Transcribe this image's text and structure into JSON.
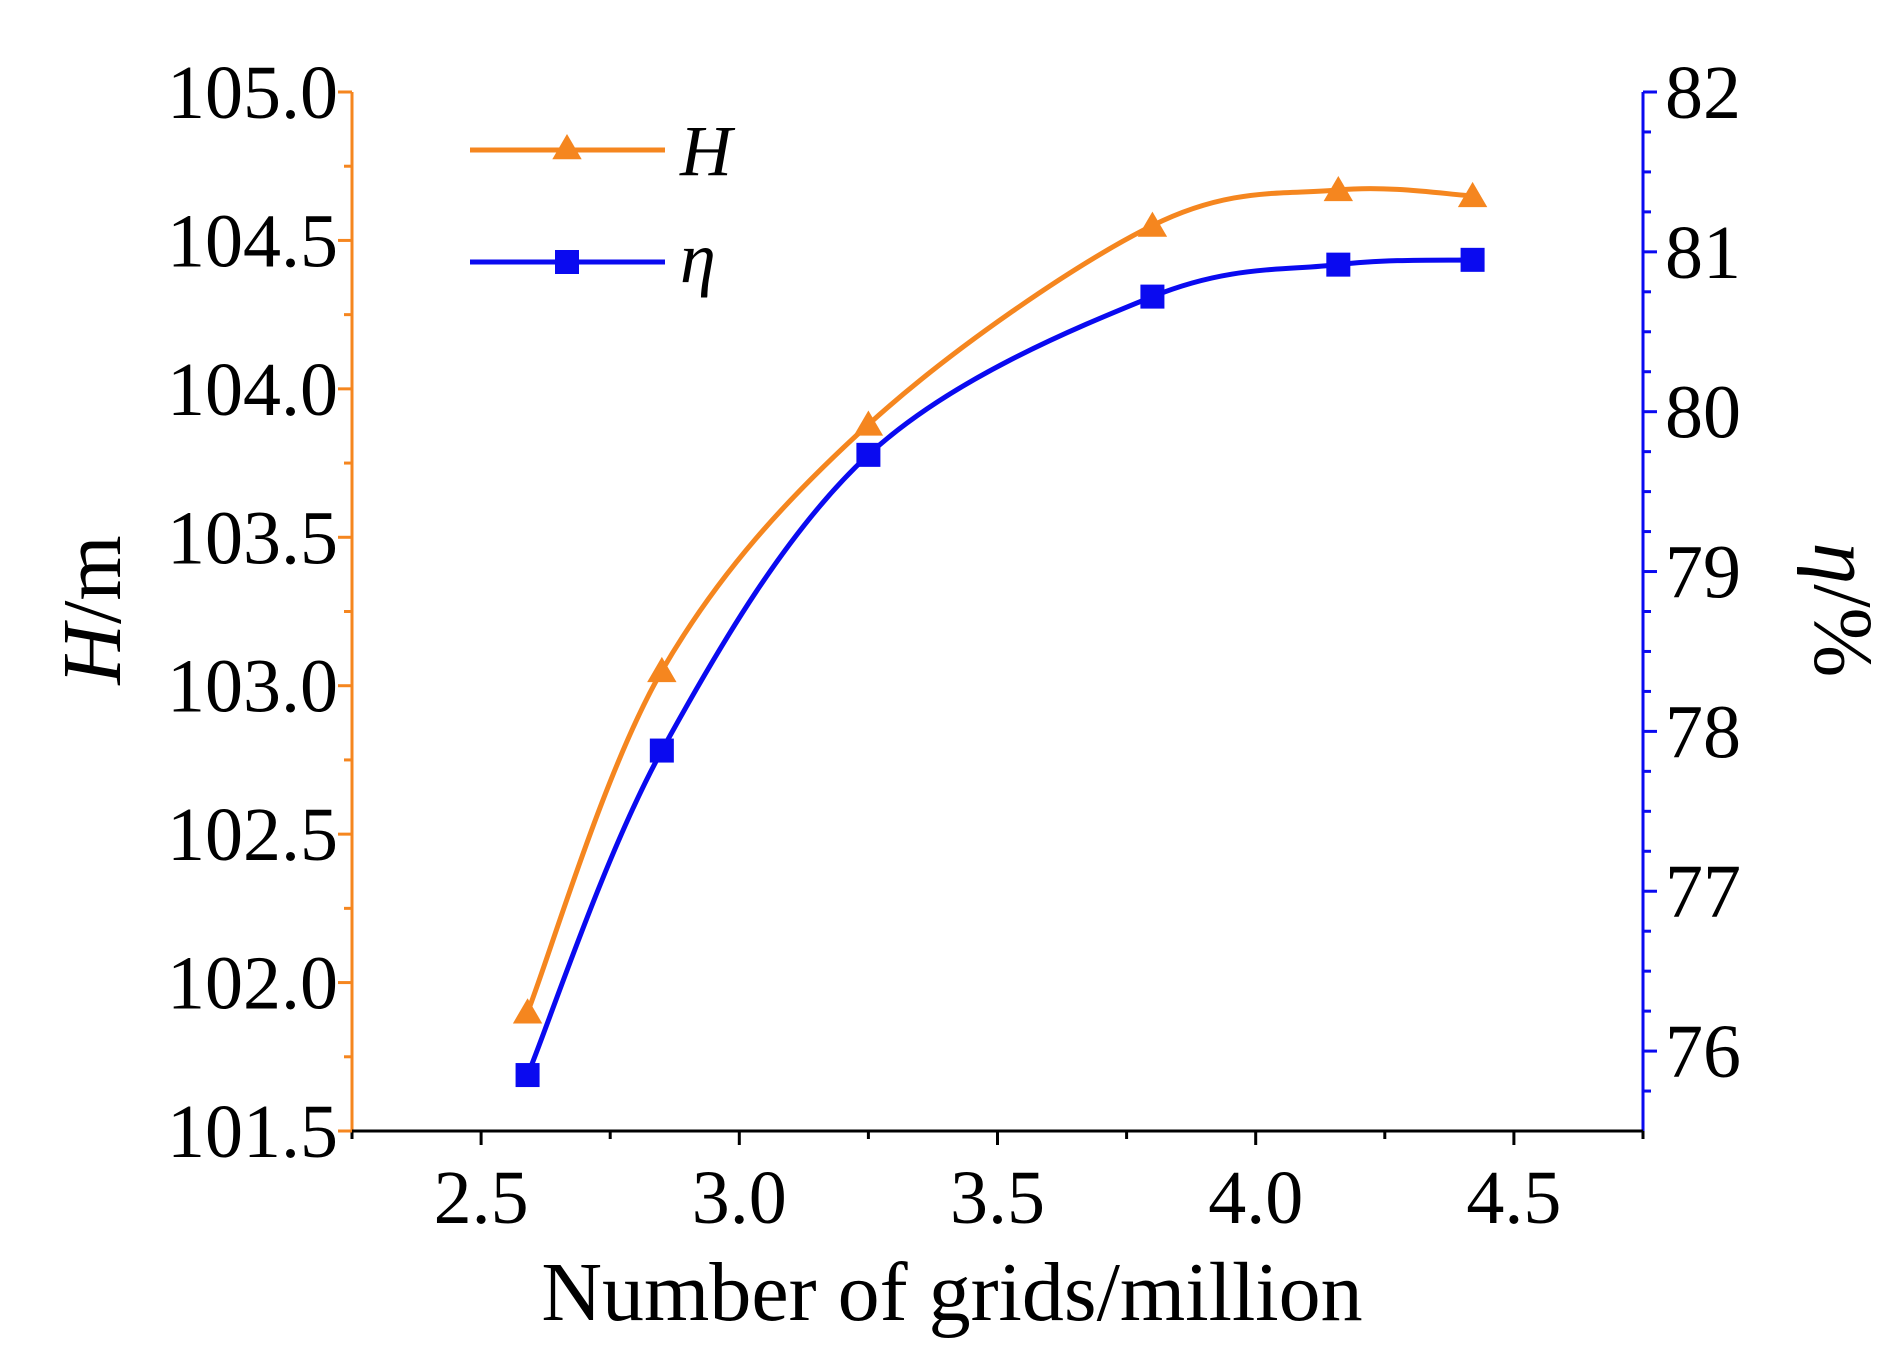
{
  "chart_data": {
    "type": "line",
    "title": "",
    "xlabel": "Number of grids/million",
    "ylabel_left": {
      "symbol": "H",
      "unit": "/m"
    },
    "ylabel_right": {
      "symbol": "η",
      "unit": "/%"
    },
    "xlim": [
      2.25,
      4.75
    ],
    "ylim_left": [
      101.5,
      105.0
    ],
    "ylim_right": [
      75.5,
      82
    ],
    "x_ticks": [
      2.5,
      3.0,
      3.5,
      4.0,
      4.5
    ],
    "x_tick_labels": [
      "2.5",
      "3.0",
      "3.5",
      "4.0",
      "4.5"
    ],
    "y_left_ticks": [
      101.5,
      102.0,
      102.5,
      103.0,
      103.5,
      104.0,
      104.5,
      105.0
    ],
    "y_left_tick_labels": [
      "101.5",
      "102.0",
      "102.5",
      "103.0",
      "103.5",
      "104.0",
      "104.5",
      "105.0"
    ],
    "y_right_ticks": [
      76,
      77,
      78,
      79,
      80,
      81,
      82
    ],
    "y_right_tick_labels": [
      "76",
      "77",
      "78",
      "79",
      "80",
      "81",
      "82"
    ],
    "legend_position": "top-left",
    "grid": false,
    "series": [
      {
        "name": "H",
        "axis": "left",
        "marker": "triangle",
        "color": "#F5861F",
        "x": [
          2.59,
          2.85,
          3.25,
          3.8,
          4.16,
          4.42
        ],
        "y": [
          101.9,
          103.05,
          103.88,
          104.55,
          104.67,
          104.65
        ]
      },
      {
        "name": "η",
        "axis": "right",
        "marker": "square",
        "color": "#0A0AF0",
        "x": [
          2.59,
          2.85,
          3.25,
          3.8,
          4.16,
          4.42
        ],
        "y": [
          75.85,
          77.88,
          79.73,
          80.72,
          80.92,
          80.95
        ]
      }
    ]
  }
}
